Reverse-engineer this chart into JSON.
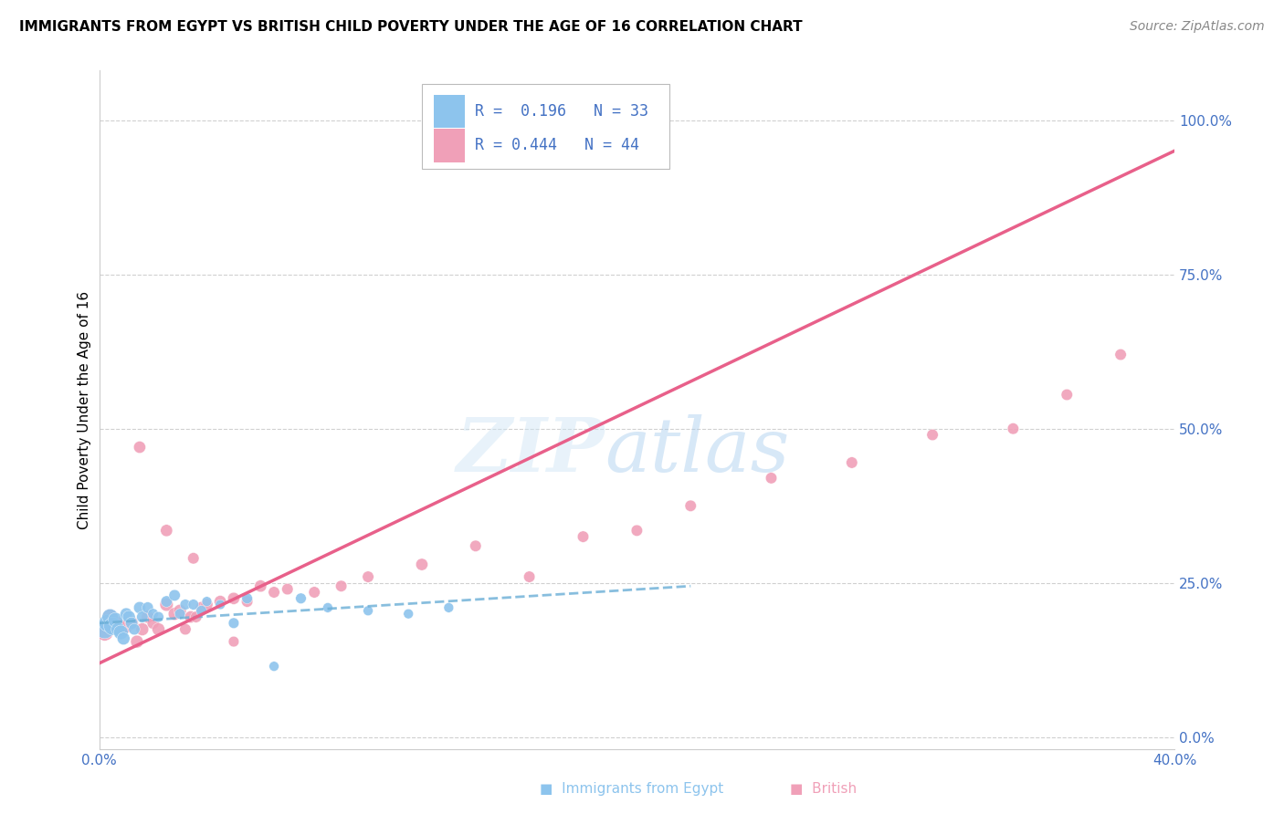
{
  "title": "IMMIGRANTS FROM EGYPT VS BRITISH CHILD POVERTY UNDER THE AGE OF 16 CORRELATION CHART",
  "source": "Source: ZipAtlas.com",
  "ylabel": "Child Poverty Under the Age of 16",
  "yticks_labels": [
    "0.0%",
    "25.0%",
    "50.0%",
    "75.0%",
    "100.0%"
  ],
  "ytick_vals": [
    0.0,
    0.25,
    0.5,
    0.75,
    1.0
  ],
  "xlim": [
    0.0,
    0.4
  ],
  "ylim": [
    -0.02,
    1.08
  ],
  "xtick_left": "0.0%",
  "xtick_right": "40.0%",
  "legend_r1": "R =  0.196",
  "legend_n1": "N = 33",
  "legend_r2": "R = 0.444",
  "legend_n2": "N = 44",
  "color_blue": "#8DC4ED",
  "color_pink": "#F0A0B8",
  "color_line_blue": "#6aaed6",
  "color_line_pink": "#e8608a",
  "blue_line_x": [
    0.0,
    0.22
  ],
  "blue_line_y": [
    0.185,
    0.245
  ],
  "pink_line_x": [
    0.0,
    0.4
  ],
  "pink_line_y": [
    0.12,
    0.95
  ],
  "blue_x": [
    0.002,
    0.003,
    0.004,
    0.005,
    0.006,
    0.007,
    0.008,
    0.009,
    0.01,
    0.011,
    0.012,
    0.013,
    0.015,
    0.016,
    0.018,
    0.02,
    0.022,
    0.025,
    0.028,
    0.03,
    0.032,
    0.035,
    0.038,
    0.04,
    0.045,
    0.05,
    0.055,
    0.065,
    0.075,
    0.085,
    0.1,
    0.115,
    0.13
  ],
  "blue_y": [
    0.175,
    0.185,
    0.195,
    0.18,
    0.19,
    0.175,
    0.17,
    0.16,
    0.2,
    0.195,
    0.185,
    0.175,
    0.21,
    0.195,
    0.21,
    0.2,
    0.195,
    0.22,
    0.23,
    0.2,
    0.215,
    0.215,
    0.205,
    0.22,
    0.215,
    0.185,
    0.225,
    0.115,
    0.225,
    0.21,
    0.205,
    0.2,
    0.21
  ],
  "blue_sizes": [
    220,
    180,
    160,
    200,
    140,
    120,
    130,
    100,
    90,
    100,
    90,
    80,
    90,
    80,
    80,
    70,
    70,
    80,
    80,
    70,
    70,
    70,
    70,
    60,
    60,
    70,
    70,
    60,
    70,
    60,
    60,
    60,
    60
  ],
  "pink_x": [
    0.002,
    0.004,
    0.006,
    0.008,
    0.01,
    0.012,
    0.014,
    0.016,
    0.018,
    0.02,
    0.022,
    0.025,
    0.028,
    0.03,
    0.032,
    0.034,
    0.036,
    0.038,
    0.04,
    0.045,
    0.05,
    0.055,
    0.06,
    0.065,
    0.07,
    0.08,
    0.09,
    0.1,
    0.12,
    0.14,
    0.16,
    0.18,
    0.2,
    0.22,
    0.25,
    0.28,
    0.31,
    0.34,
    0.36,
    0.38,
    0.015,
    0.025,
    0.035,
    0.05
  ],
  "pink_y": [
    0.17,
    0.195,
    0.185,
    0.175,
    0.18,
    0.185,
    0.155,
    0.175,
    0.195,
    0.185,
    0.175,
    0.215,
    0.2,
    0.205,
    0.175,
    0.195,
    0.195,
    0.21,
    0.215,
    0.22,
    0.225,
    0.22,
    0.245,
    0.235,
    0.24,
    0.235,
    0.245,
    0.26,
    0.28,
    0.31,
    0.26,
    0.325,
    0.335,
    0.375,
    0.42,
    0.445,
    0.49,
    0.5,
    0.555,
    0.62,
    0.47,
    0.335,
    0.29,
    0.155
  ],
  "pink_sizes": [
    180,
    150,
    130,
    140,
    120,
    110,
    100,
    100,
    100,
    90,
    100,
    110,
    100,
    100,
    80,
    90,
    80,
    90,
    90,
    90,
    90,
    80,
    90,
    80,
    80,
    80,
    80,
    80,
    90,
    80,
    80,
    80,
    80,
    80,
    80,
    80,
    80,
    80,
    80,
    80,
    90,
    90,
    80,
    70
  ]
}
